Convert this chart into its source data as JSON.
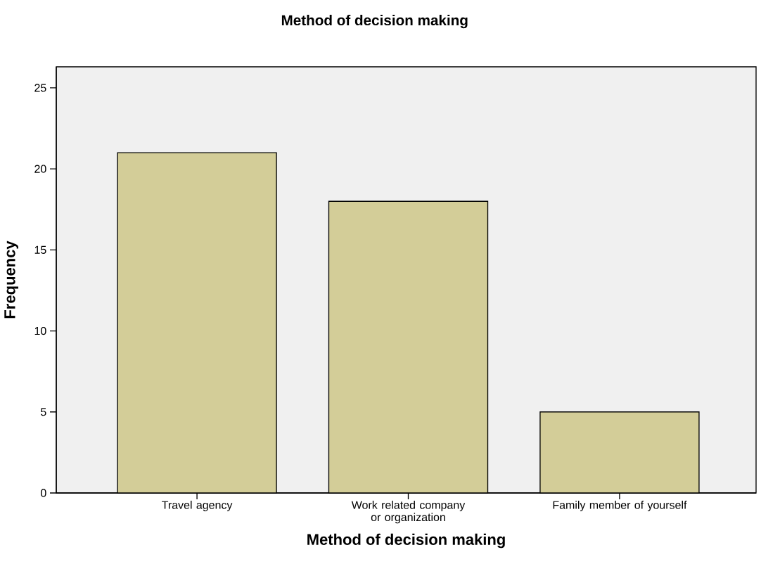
{
  "chart_data": {
    "type": "bar",
    "title": "Method of decision making",
    "xlabel": "Method of decision making",
    "ylabel": "Frequency",
    "categories": [
      "Travel agency",
      "Work related company or organization",
      "Family member of yourself"
    ],
    "values": [
      21,
      18,
      5
    ],
    "color": "#d3cd98",
    "ylim": [
      0,
      26.3
    ],
    "yticks": [
      0,
      5,
      10,
      15,
      20,
      25
    ]
  }
}
